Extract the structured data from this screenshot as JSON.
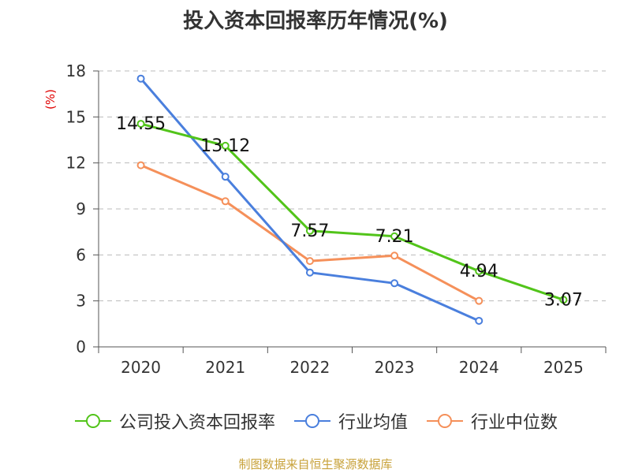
{
  "title": "投入资本回报率历年情况(%)",
  "unit_label": "(%)",
  "source": "制图数据来自恒生聚源数据库",
  "colors": {
    "company": "#52c41a",
    "average": "#4a7fdd",
    "median": "#f5905a",
    "unit": "#e00000",
    "source": "#c8a23a",
    "grid": "#bbbbbb",
    "axis": "#555555"
  },
  "chart_data": {
    "type": "line",
    "title": "投入资本回报率历年情况(%)",
    "xlabel": "",
    "ylabel": "(%)",
    "categories": [
      "2020",
      "2021",
      "2022",
      "2023",
      "2024",
      "2025"
    ],
    "ylim": [
      0,
      18
    ],
    "yticks": [
      0,
      3,
      6,
      9,
      12,
      15,
      18
    ],
    "grid": true,
    "legend_position": "bottom",
    "series": [
      {
        "key": "company",
        "name": "公司投入资本回报率",
        "color": "#52c41a",
        "values": [
          14.55,
          13.12,
          7.57,
          7.21,
          4.94,
          3.07
        ],
        "labels": [
          "14.55",
          "13.12",
          "7.57",
          "7.21",
          "4.94",
          "3.07"
        ],
        "show_labels": true
      },
      {
        "key": "average",
        "name": "行业均值",
        "color": "#4a7fdd",
        "values": [
          17.5,
          11.1,
          4.85,
          4.15,
          1.7,
          null
        ],
        "show_labels": false
      },
      {
        "key": "median",
        "name": "行业中位数",
        "color": "#f5905a",
        "values": [
          11.85,
          9.5,
          5.6,
          5.95,
          3.0,
          null
        ],
        "show_labels": false
      }
    ]
  }
}
